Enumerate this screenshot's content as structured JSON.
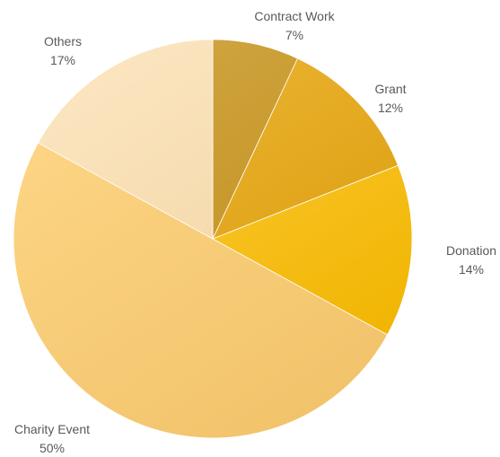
{
  "chart_data": {
    "type": "pie",
    "title": "",
    "start_angle_deg": 0,
    "direction": "clockwise",
    "slices": [
      {
        "label": "Contract Work",
        "value": 7,
        "display": "7%",
        "color_light": "#d3a94a",
        "color_dark": "#bf8c14"
      },
      {
        "label": "Grant",
        "value": 12,
        "display": "12%",
        "color_light": "#f0bb3e",
        "color_dark": "#d99a08"
      },
      {
        "label": "Donation",
        "value": 14,
        "display": "14%",
        "color_light": "#ffd043",
        "color_dark": "#f0b400"
      },
      {
        "label": "Charity Event",
        "value": 50,
        "display": "50%",
        "color_light": "#ffd98a",
        "color_dark": "#f2c36b"
      },
      {
        "label": "Others",
        "value": 17,
        "display": "17%",
        "color_light": "#fde8c5",
        "color_dark": "#f0d19e"
      }
    ]
  }
}
